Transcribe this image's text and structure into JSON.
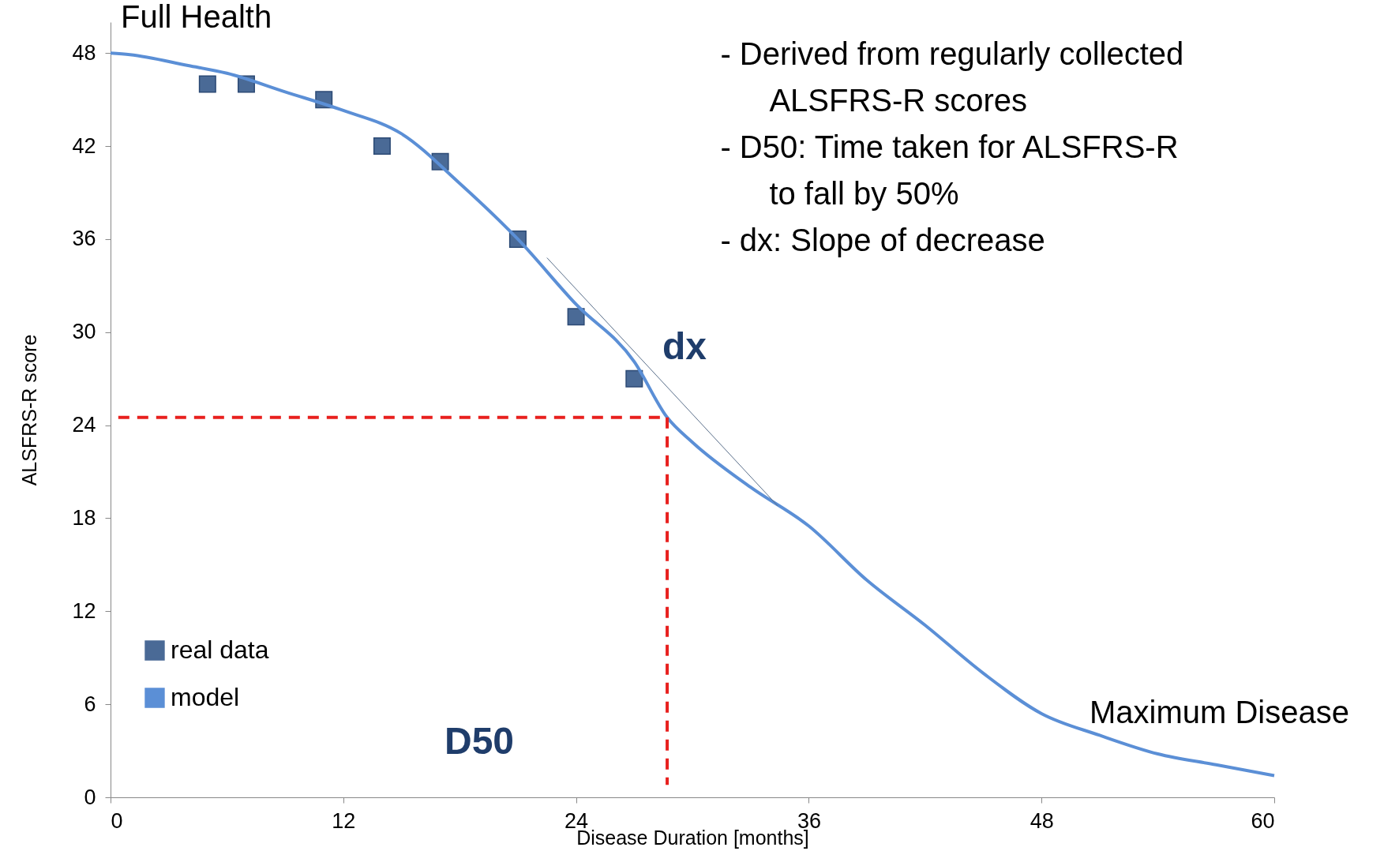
{
  "chart_data": {
    "type": "line",
    "xlabel": "Disease Duration [months]",
    "ylabel": "ALSFRS-R score",
    "xlim": [
      0,
      60
    ],
    "xticks": [
      0,
      12,
      24,
      36,
      48,
      60
    ],
    "ylim": [
      0,
      50
    ],
    "yticks": [
      0,
      6,
      12,
      18,
      24,
      30,
      36,
      42,
      48
    ],
    "grid": false,
    "legend": "bottom left",
    "series": [
      {
        "name": "real data",
        "type": "scatter",
        "marker": "square",
        "color": "#4a6a96",
        "x": [
          5,
          7,
          11,
          14,
          17,
          21,
          24,
          27
        ],
        "values": [
          46,
          46,
          45,
          42,
          41,
          36,
          31,
          27
        ]
      },
      {
        "name": "model",
        "color": "#5b8fd6",
        "x": [
          0,
          1,
          4,
          6,
          9,
          12,
          15,
          18,
          21,
          24,
          27,
          28.7,
          30,
          33,
          36,
          39,
          42,
          45,
          48,
          51,
          54,
          57,
          60
        ],
        "values": [
          48,
          47.9,
          47.2,
          46.7,
          45.5,
          44.3,
          42.8,
          39.6,
          36,
          31.8,
          28.1,
          24.5,
          22.9,
          20,
          17.5,
          14,
          11.1,
          8,
          5.4,
          4,
          2.8,
          2.1,
          1.4
        ]
      },
      {
        "color": "#5a6f8a",
        "x": [
          22.5,
          34.4
        ],
        "values": [
          34.8,
          18.8
        ]
      },
      {
        "line_style": "dashed",
        "color": "#e8201e",
        "x": [
          0.4,
          28.7
        ],
        "values": [
          24.5,
          24.5
        ]
      },
      {
        "line_style": "dashed",
        "color": "#e8201e",
        "x": [
          28.7,
          28.7
        ],
        "values": [
          24.5,
          0.8
        ]
      }
    ],
    "annotations": [
      "Full Health",
      "dx",
      "D50",
      "Maximum Disease",
      "- Derived from regularly collected\nALSFRS-R scores",
      "- D50: Time taken for ALSFRS-R\nto fall by 50%",
      "- dx: Slope of decrease"
    ]
  }
}
